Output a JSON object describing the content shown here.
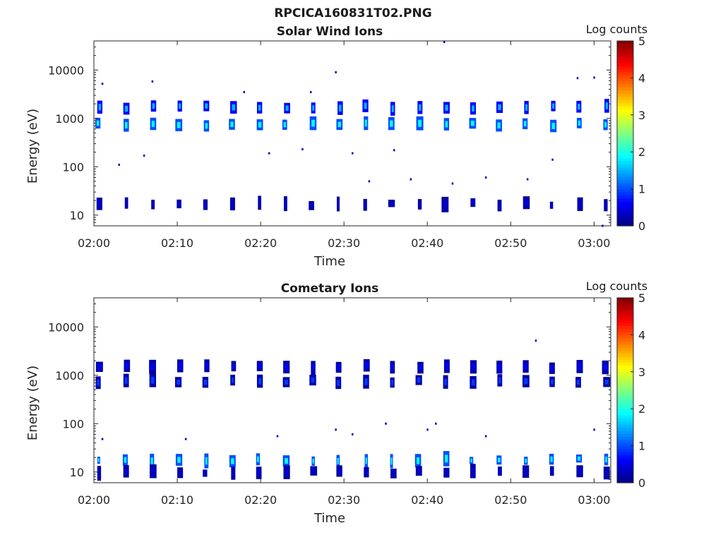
{
  "figure_title": "RPCICA160831T02.PNG",
  "chart_data": [
    {
      "type": "heatmap",
      "title": "Solar Wind Ions",
      "xlabel": "Time",
      "ylabel": "Energy (eV)",
      "yscale": "log",
      "xlim": [
        "02:00",
        "03:02"
      ],
      "ylim": [
        6,
        40000
      ],
      "x_ticks": [
        "02:00",
        "02:10",
        "02:20",
        "02:30",
        "02:40",
        "02:50",
        "03:00"
      ],
      "y_ticks": [
        "10",
        "100",
        "1000",
        "10000"
      ],
      "colorbar": {
        "label": "Log counts",
        "min": 0,
        "max": 5,
        "ticks": [
          "0",
          "1",
          "2",
          "3",
          "4",
          "5"
        ],
        "colormap": "jet"
      },
      "sweep_period_min": 3.2,
      "bursts": [
        {
          "energy_eV": 750,
          "log_counts": 1.9
        },
        {
          "energy_eV": 1700,
          "log_counts": 1.5
        },
        {
          "energy_eV": 17,
          "log_counts": 0.4
        }
      ],
      "scatter": [
        {
          "time": "02:01",
          "energy_eV": 5200,
          "log_counts": 0.3
        },
        {
          "time": "02:07",
          "energy_eV": 5800,
          "log_counts": 0.3
        },
        {
          "time": "02:18",
          "energy_eV": 3500,
          "log_counts": 0.3
        },
        {
          "time": "02:26",
          "energy_eV": 3500,
          "log_counts": 0.3
        },
        {
          "time": "02:29",
          "energy_eV": 9000,
          "log_counts": 0.3
        },
        {
          "time": "02:42",
          "energy_eV": 38000,
          "log_counts": 0.3
        },
        {
          "time": "02:58",
          "energy_eV": 6800,
          "log_counts": 0.3
        },
        {
          "time": "03:00",
          "energy_eV": 7000,
          "log_counts": 0.3
        },
        {
          "time": "02:03",
          "energy_eV": 110,
          "log_counts": 0.3
        },
        {
          "time": "02:06",
          "energy_eV": 170,
          "log_counts": 0.3
        },
        {
          "time": "02:21",
          "energy_eV": 190,
          "log_counts": 0.3
        },
        {
          "time": "02:25",
          "energy_eV": 230,
          "log_counts": 0.3
        },
        {
          "time": "02:31",
          "energy_eV": 190,
          "log_counts": 0.3
        },
        {
          "time": "02:36",
          "energy_eV": 220,
          "log_counts": 0.3
        },
        {
          "time": "02:55",
          "energy_eV": 140,
          "log_counts": 0.3
        },
        {
          "time": "02:47",
          "energy_eV": 60,
          "log_counts": 0.3
        },
        {
          "time": "02:38",
          "energy_eV": 55,
          "log_counts": 0.3
        },
        {
          "time": "02:33",
          "energy_eV": 50,
          "log_counts": 0.3
        },
        {
          "time": "02:43",
          "energy_eV": 45,
          "log_counts": 0.3
        },
        {
          "time": "02:52",
          "energy_eV": 55,
          "log_counts": 0.3
        },
        {
          "time": "03:01",
          "energy_eV": 6,
          "log_counts": 0.3
        }
      ]
    },
    {
      "type": "heatmap",
      "title": "Cometary Ions",
      "xlabel": "Time",
      "ylabel": "Energy (eV)",
      "yscale": "log",
      "xlim": [
        "02:00",
        "03:02"
      ],
      "ylim": [
        6,
        40000
      ],
      "x_ticks": [
        "02:00",
        "02:10",
        "02:20",
        "02:30",
        "02:40",
        "02:50",
        "03:00"
      ],
      "y_ticks": [
        "10",
        "100",
        "1000",
        "10000"
      ],
      "colorbar": {
        "label": "Log counts",
        "min": 0,
        "max": 5,
        "ticks": [
          "0",
          "1",
          "2",
          "3",
          "4",
          "5"
        ],
        "colormap": "jet"
      },
      "sweep_period_min": 3.2,
      "bursts": [
        {
          "energy_eV": 750,
          "log_counts": 0.9
        },
        {
          "energy_eV": 1500,
          "log_counts": 0.6
        },
        {
          "energy_eV": 18,
          "log_counts": 1.9
        },
        {
          "energy_eV": 10,
          "log_counts": 0.4
        }
      ],
      "scatter": [
        {
          "time": "02:53",
          "energy_eV": 5200,
          "log_counts": 0.3
        },
        {
          "time": "02:35",
          "energy_eV": 100,
          "log_counts": 0.3
        },
        {
          "time": "02:41",
          "energy_eV": 100,
          "log_counts": 0.3
        },
        {
          "time": "02:29",
          "energy_eV": 75,
          "log_counts": 0.3
        },
        {
          "time": "02:31",
          "energy_eV": 60,
          "log_counts": 0.3
        },
        {
          "time": "02:40",
          "energy_eV": 75,
          "log_counts": 0.3
        },
        {
          "time": "02:47",
          "energy_eV": 55,
          "log_counts": 0.3
        },
        {
          "time": "03:00",
          "energy_eV": 75,
          "log_counts": 0.3
        },
        {
          "time": "02:22",
          "energy_eV": 55,
          "log_counts": 0.3
        },
        {
          "time": "02:01",
          "energy_eV": 48,
          "log_counts": 0.3
        },
        {
          "time": "02:11",
          "energy_eV": 48,
          "log_counts": 0.3
        }
      ]
    }
  ]
}
